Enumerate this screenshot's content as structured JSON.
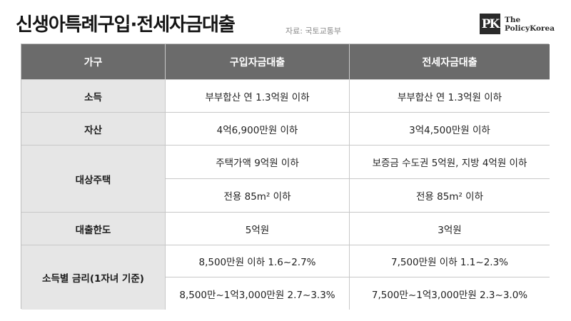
{
  "header": {
    "title": "신생아특례구입·전세자금대출",
    "source": "자료: 국토교통부"
  },
  "logo": {
    "mark": "PK",
    "line1": "The",
    "line2": "PolicyKorea"
  },
  "table": {
    "columns": [
      "가구",
      "구입자금대출",
      "전세자금대출"
    ],
    "rows": {
      "income": {
        "label": "소득",
        "purchase": "부부합산 연 1.3억원 이하",
        "jeonse": "부부합산 연 1.3억원 이하"
      },
      "assets": {
        "label": "자산",
        "purchase": "4억6,900만원 이하",
        "jeonse": "3억4,500만원 이하"
      },
      "housing": {
        "label": "대상주택",
        "purchase_price": "주택가액 9억원 이하",
        "jeonse_deposit": "보증금 수도권 5억원, 지방 4억원 이하",
        "purchase_area": "전용 85m² 이하",
        "jeonse_area": "전용 85m² 이하"
      },
      "limit": {
        "label": "대출한도",
        "purchase": "5억원",
        "jeonse": "3억원"
      },
      "rate": {
        "label": "소득별 금리(1자녀 기준)",
        "purchase_low": "8,500만원 이하 1.6~2.7%",
        "jeonse_low": "7,500만원 이하 1.1~2.3%",
        "purchase_high": "8,500만~1억3,000만원 2.7~3.3%",
        "jeonse_high": "7,500만~1억3,000만원 2.3~3.0%"
      }
    }
  }
}
